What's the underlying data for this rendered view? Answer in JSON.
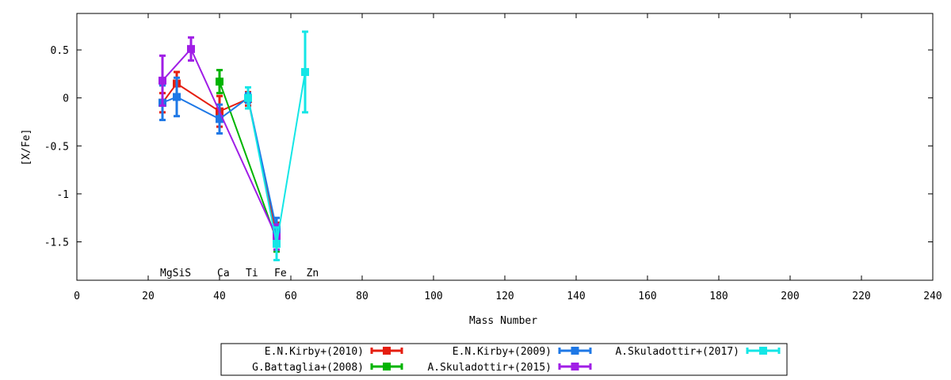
{
  "chart_data": {
    "type": "line",
    "title": "",
    "xlabel": "Mass Number",
    "ylabel": "[X/Fe]",
    "xlim": [
      0,
      240
    ],
    "ylim": [
      -1.9,
      0.88
    ],
    "xticks": [
      0,
      20,
      40,
      60,
      80,
      100,
      120,
      140,
      160,
      180,
      200,
      220,
      240
    ],
    "yticks": [
      0.5,
      0,
      -0.5,
      -1,
      -1.5
    ],
    "ytick_labels": [
      "0.5",
      "0",
      "-0.5",
      "-1",
      "-1.5"
    ],
    "grid": false,
    "legend_position": "bottom-center",
    "element_labels": [
      {
        "text": "MgSiS",
        "x": 24
      },
      {
        "text": "Ca",
        "x": 40
      },
      {
        "text": "Ti",
        "x": 48
      },
      {
        "text": "Fe",
        "x": 56
      },
      {
        "text": "Zn",
        "x": 65
      }
    ],
    "series": [
      {
        "name": "E.N.Kirby+(2010)",
        "color": "#e51e10",
        "points": [
          {
            "x": 24,
            "y": -0.05,
            "err": 0.1
          },
          {
            "x": 28,
            "y": 0.15,
            "err": 0.12
          },
          {
            "x": 40,
            "y": -0.14,
            "err": 0.16
          },
          {
            "x": 48,
            "y": -0.01,
            "err": 0.07
          },
          {
            "x": 56,
            "y": -1.45,
            "err": 0.15
          }
        ]
      },
      {
        "name": "G.Battaglia+(2008)",
        "color": "#00b400",
        "points": [
          {
            "x": 40,
            "y": 0.17,
            "err": 0.12
          },
          {
            "x": 56,
            "y": -1.48,
            "err": 0.12
          }
        ]
      },
      {
        "name": "E.N.Kirby+(2009)",
        "color": "#1e78e6",
        "points": [
          {
            "x": 24,
            "y": -0.05,
            "err": 0.18
          },
          {
            "x": 28,
            "y": 0.01,
            "err": 0.2
          },
          {
            "x": 40,
            "y": -0.22,
            "err": 0.15
          },
          {
            "x": 48,
            "y": 0.0,
            "err": 0.05
          },
          {
            "x": 56,
            "y": -1.37,
            "err": 0.12
          }
        ]
      },
      {
        "name": "A.Skuladottir+(2015)",
        "color": "#a01ee6",
        "points": [
          {
            "x": 24,
            "y": 0.18,
            "err": 0.26
          },
          {
            "x": 32,
            "y": 0.51,
            "err": 0.12
          },
          {
            "x": 56,
            "y": -1.45,
            "err": 0.13
          }
        ]
      },
      {
        "name": "A.Skuladottir+(2017)",
        "color": "#14e6e6",
        "points": [
          {
            "x": 48,
            "y": 0.0,
            "err": 0.11
          },
          {
            "x": 56,
            "y": -1.52,
            "err": 0.17
          },
          {
            "x": 64,
            "y": 0.27,
            "err": 0.42
          }
        ]
      }
    ]
  }
}
